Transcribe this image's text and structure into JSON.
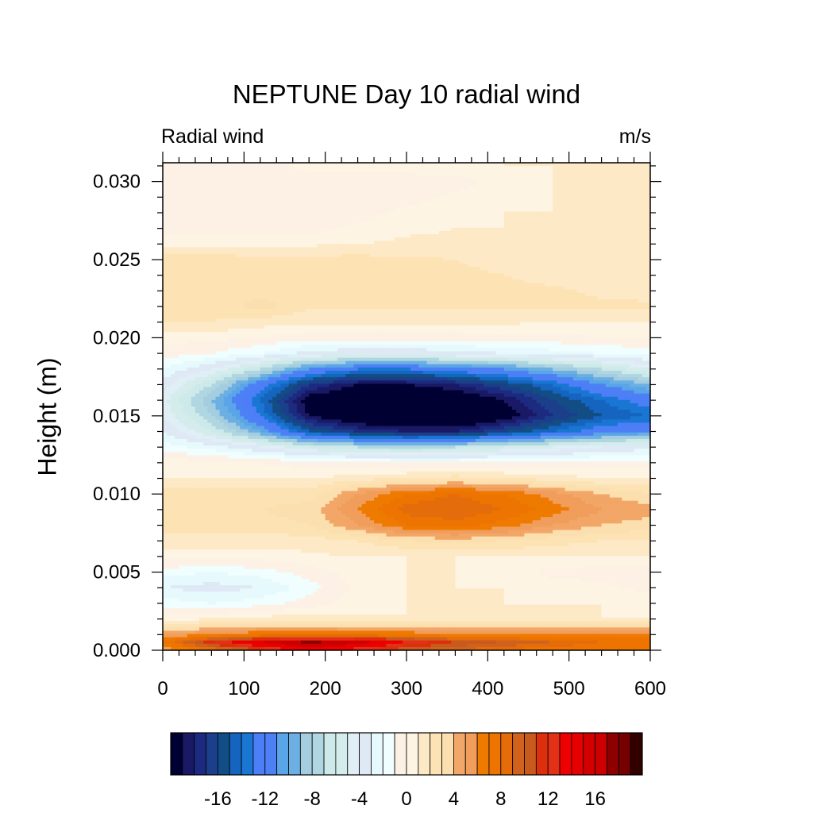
{
  "chart_data": {
    "type": "heatmap",
    "title": "NEPTUNE Day 10 radial wind",
    "left_string": "Radial wind",
    "right_string": "m/s",
    "xlabel": "",
    "ylabel": "Height (m)",
    "xlim": [
      0,
      600
    ],
    "ylim": [
      0,
      0.0312
    ],
    "x_ticks": [
      0,
      100,
      200,
      300,
      400,
      500,
      600
    ],
    "x_tick_labels": [
      "0",
      "100",
      "200",
      "300",
      "400",
      "500",
      "600"
    ],
    "y_ticks": [
      0,
      0.005,
      0.01,
      0.015,
      0.02,
      0.025,
      0.03
    ],
    "y_tick_labels": [
      "0.000",
      "0.005",
      "0.010",
      "0.015",
      "0.020",
      "0.025",
      "0.030"
    ],
    "x": [
      0,
      60,
      120,
      180,
      240,
      300,
      360,
      420,
      480,
      540,
      600
    ],
    "y": [
      0,
      0.0005,
      0.001,
      0.002,
      0.003,
      0.004,
      0.005,
      0.006,
      0.007,
      0.008,
      0.009,
      0.01,
      0.011,
      0.012,
      0.013,
      0.014,
      0.015,
      0.016,
      0.017,
      0.018,
      0.019,
      0.02,
      0.021,
      0.022,
      0.023,
      0.024,
      0.025,
      0.026,
      0.027,
      0.028,
      0.029,
      0.03,
      0.031
    ],
    "z": [
      [
        5,
        8,
        11,
        14,
        12,
        10,
        9,
        8,
        7,
        7,
        7
      ],
      [
        7,
        12,
        15,
        18,
        16,
        13,
        11,
        10,
        9,
        8,
        8
      ],
      [
        5,
        6,
        7,
        7,
        7,
        7,
        6,
        6,
        6,
        6,
        6
      ],
      [
        0.5,
        1,
        1.5,
        1.5,
        1.2,
        1,
        1,
        1,
        1,
        1,
        1
      ],
      [
        -1.5,
        -2,
        -1.5,
        -0.5,
        0.5,
        1,
        1,
        1,
        1,
        1,
        0.5
      ],
      [
        -3,
        -3.5,
        -3,
        -1.5,
        0.3,
        1,
        1,
        1,
        0.5,
        0.3,
        -0.3
      ],
      [
        -1.5,
        -2,
        -1.5,
        -0.5,
        0.5,
        1,
        1,
        0.5,
        -0.3,
        -0.5,
        -0.5
      ],
      [
        0.5,
        0.5,
        0.5,
        0.8,
        1,
        1,
        1,
        1,
        1,
        1,
        1
      ],
      [
        1.5,
        1.5,
        1.5,
        1.5,
        2,
        3,
        3.5,
        3,
        2.5,
        2,
        2
      ],
      [
        2.5,
        2.5,
        2.5,
        3,
        5,
        7,
        7.5,
        6.5,
        5,
        4,
        3.5
      ],
      [
        3,
        3,
        3,
        3.5,
        6,
        8.5,
        9,
        8,
        6.5,
        5,
        4.5
      ],
      [
        2.5,
        2.5,
        2.5,
        2.5,
        5,
        7,
        8,
        7,
        5.5,
        4,
        3
      ],
      [
        1,
        1,
        1,
        1,
        1.5,
        2,
        2.5,
        2,
        1.5,
        1,
        1
      ],
      [
        0.5,
        0.3,
        0,
        -0.5,
        -0.8,
        -1,
        -1,
        -1,
        -1,
        -0.5,
        -0.5
      ],
      [
        -1.5,
        -2.5,
        -4,
        -6,
        -7,
        -7.5,
        -7,
        -6,
        -5,
        -4,
        -3.5
      ],
      [
        -3,
        -6,
        -10,
        -15,
        -17,
        -18,
        -18,
        -16,
        -14,
        -12,
        -11
      ],
      [
        -4,
        -8,
        -13,
        -19,
        -21,
        -22,
        -22,
        -20,
        -17,
        -15,
        -14
      ],
      [
        -4.5,
        -9,
        -14,
        -20,
        -21,
        -22,
        -21,
        -19,
        -16,
        -14,
        -12
      ],
      [
        -3.5,
        -7,
        -12,
        -17,
        -19,
        -19,
        -18,
        -16,
        -14,
        -11,
        -9
      ],
      [
        -2,
        -4,
        -7,
        -11,
        -13,
        -13,
        -12,
        -11,
        -9,
        -7,
        -5
      ],
      [
        -0.5,
        -1,
        -2,
        -3.5,
        -4,
        -4,
        -3.5,
        -3,
        -2.5,
        -2,
        -1.5
      ],
      [
        0.5,
        0.3,
        0,
        -0.5,
        -0.5,
        -0.5,
        -0.5,
        -0.3,
        -0.3,
        0,
        0
      ],
      [
        2,
        2,
        1.5,
        1.2,
        1.2,
        1.2,
        1.2,
        1.2,
        1,
        1,
        1
      ],
      [
        2.2,
        2.2,
        3.5,
        2.2,
        2.2,
        2.2,
        2.2,
        2.2,
        2.2,
        2.2,
        2.2
      ],
      [
        2.5,
        2.5,
        2.5,
        2.5,
        2.5,
        2.5,
        2.5,
        2.3,
        2.2,
        1.8,
        1.6
      ],
      [
        2.5,
        2.5,
        2.4,
        2.4,
        2.4,
        2.4,
        2.2,
        2,
        1.6,
        1.4,
        1.2
      ],
      [
        2.5,
        2.5,
        2.4,
        2.4,
        2.4,
        2.2,
        2,
        1.7,
        1.4,
        1.2,
        1.2
      ],
      [
        0.8,
        0.8,
        0.8,
        0.8,
        1,
        1.2,
        1.2,
        1.2,
        1.2,
        1.2,
        1.2
      ],
      [
        -0.5,
        -0.5,
        -0.5,
        -0.5,
        0.3,
        0.8,
        1,
        1,
        1,
        1,
        1
      ],
      [
        -0.5,
        -0.5,
        -0.5,
        -0.5,
        -0.5,
        0.3,
        0.8,
        1,
        1,
        1,
        1
      ],
      [
        -0.5,
        -0.5,
        -0.5,
        -0.5,
        -0.5,
        -0.5,
        0.3,
        0.8,
        1,
        1,
        1
      ],
      [
        -0.5,
        -0.5,
        -0.5,
        -0.5,
        -0.5,
        -0.5,
        -0.5,
        0.5,
        1,
        1,
        1
      ],
      [
        -0.5,
        -0.5,
        -0.5,
        0.3,
        0.5,
        0.5,
        0.8,
        1,
        1,
        1,
        1
      ]
    ],
    "levels": [
      -19,
      -18,
      -17,
      -16,
      -15,
      -14,
      -13,
      -12,
      -11,
      -10,
      -9,
      -8,
      -7,
      -6,
      -5,
      -4,
      -3,
      -2,
      -1,
      0,
      1,
      2,
      3,
      4,
      5,
      6,
      7,
      8,
      9,
      10,
      11,
      12,
      13,
      14,
      15,
      16,
      17,
      18,
      19
    ],
    "colorbar_colors": [
      "#000033",
      "#191966",
      "#1c2a80",
      "#1b3f8a",
      "#124d85",
      "#1565c0",
      "#1976d2",
      "#4c7ef8",
      "#4d80f5",
      "#5aa5e8",
      "#6cb0e3",
      "#a4cee0",
      "#b0d6e1",
      "#cde9e9",
      "#d4ecec",
      "#e0eef5",
      "#dfe8f5",
      "#e6f9fc",
      "#f0feff",
      "#fcf1e4",
      "#fdf4e3",
      "#fde9c6",
      "#fde3b3",
      "#fcdfae",
      "#f2a667",
      "#f19d5b",
      "#ee7a00",
      "#ed7400",
      "#e46c0a",
      "#d0621e",
      "#c85a1e",
      "#dd2f0c",
      "#e33118",
      "#ee0000",
      "#e70000",
      "#d30000",
      "#cc0000",
      "#8e0000",
      "#750000",
      "#330000"
    ],
    "colorbar_ticks": [
      -16,
      -12,
      -8,
      -4,
      0,
      4,
      8,
      12,
      16
    ],
    "colorbar_tick_labels": [
      "-16",
      "-12",
      "-8",
      "-4",
      "0",
      "4",
      "8",
      "12",
      "16"
    ],
    "grid": false,
    "legend": "bottom"
  }
}
